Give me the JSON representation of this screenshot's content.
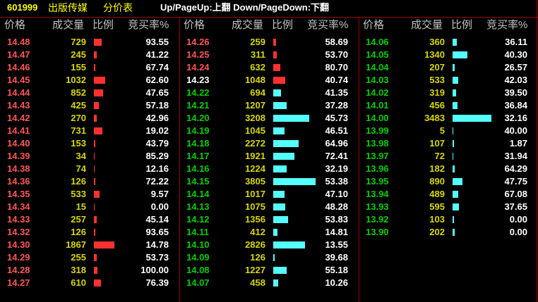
{
  "header": {
    "code": "601999",
    "name": "出版传媒",
    "title": "分价表",
    "hint": "Up/PageUp:上翻 Down/PageDown:下翻"
  },
  "columns_header": [
    "价格",
    "成交量",
    "比例",
    "竞买率%"
  ],
  "panels": [
    {
      "rows": [
        {
          "price": "14.48",
          "volume": 729,
          "rate": "93.55",
          "color": "#ff5454",
          "bar_color": "#ff3030"
        },
        {
          "price": "14.47",
          "volume": 245,
          "rate": "41.22",
          "color": "#ff5454",
          "bar_color": "#ff3030"
        },
        {
          "price": "14.46",
          "volume": 155,
          "rate": "67.74",
          "color": "#ff5454",
          "bar_color": "#ff3030"
        },
        {
          "price": "14.45",
          "volume": 1032,
          "rate": "62.60",
          "color": "#ff5454",
          "bar_color": "#ff3030"
        },
        {
          "price": "14.44",
          "volume": 852,
          "rate": "47.65",
          "color": "#ff5454",
          "bar_color": "#ff3030"
        },
        {
          "price": "14.43",
          "volume": 425,
          "rate": "57.18",
          "color": "#ff5454",
          "bar_color": "#ff3030"
        },
        {
          "price": "14.42",
          "volume": 270,
          "rate": "42.96",
          "color": "#ff5454",
          "bar_color": "#ff3030"
        },
        {
          "price": "14.41",
          "volume": 731,
          "rate": "19.02",
          "color": "#ff5454",
          "bar_color": "#ff3030"
        },
        {
          "price": "14.40",
          "volume": 153,
          "rate": "43.79",
          "color": "#ff5454",
          "bar_color": "#ff3030"
        },
        {
          "price": "14.39",
          "volume": 34,
          "rate": "85.29",
          "color": "#ff5454",
          "bar_color": "#ff3030"
        },
        {
          "price": "14.38",
          "volume": 74,
          "rate": "12.16",
          "color": "#ff5454",
          "bar_color": "#ff3030"
        },
        {
          "price": "14.36",
          "volume": 126,
          "rate": "72.22",
          "color": "#ff5454",
          "bar_color": "#ff3030"
        },
        {
          "price": "14.35",
          "volume": 533,
          "rate": "9.57",
          "color": "#ff5454",
          "bar_color": "#ff3030"
        },
        {
          "price": "14.34",
          "volume": 15,
          "rate": "0.00",
          "color": "#ff5454",
          "bar_color": "#ff3030"
        },
        {
          "price": "14.33",
          "volume": 257,
          "rate": "45.14",
          "color": "#ff5454",
          "bar_color": "#ff3030"
        },
        {
          "price": "14.32",
          "volume": 126,
          "rate": "93.65",
          "color": "#ff5454",
          "bar_color": "#ff3030"
        },
        {
          "price": "14.30",
          "volume": 1867,
          "rate": "14.78",
          "color": "#ff5454",
          "bar_color": "#ff3030"
        },
        {
          "price": "14.29",
          "volume": 255,
          "rate": "53.73",
          "color": "#ff5454",
          "bar_color": "#ff3030"
        },
        {
          "price": "14.28",
          "volume": 318,
          "rate": "100.00",
          "color": "#ff5454",
          "bar_color": "#ff3030"
        },
        {
          "price": "14.27",
          "volume": 610,
          "rate": "76.39",
          "color": "#ff5454",
          "bar_color": "#ff3030"
        }
      ]
    },
    {
      "rows": [
        {
          "price": "14.26",
          "volume": 259,
          "rate": "58.69",
          "color": "#ff5454",
          "bar_color": "#ff3030"
        },
        {
          "price": "14.25",
          "volume": 311,
          "rate": "53.70",
          "color": "#ff5454",
          "bar_color": "#ff3030"
        },
        {
          "price": "14.24",
          "volume": 632,
          "rate": "80.70",
          "color": "#ff5454",
          "bar_color": "#ff3030"
        },
        {
          "price": "14.23",
          "volume": 1048,
          "rate": "40.74",
          "color": "#ffffff",
          "bar_color": "#ff3030"
        },
        {
          "price": "14.22",
          "volume": 694,
          "rate": "41.35",
          "color": "#00d000",
          "bar_color": "#54ffff"
        },
        {
          "price": "14.21",
          "volume": 1207,
          "rate": "37.28",
          "color": "#00d000",
          "bar_color": "#54ffff"
        },
        {
          "price": "14.20",
          "volume": 3208,
          "rate": "45.73",
          "color": "#00d000",
          "bar_color": "#54ffff"
        },
        {
          "price": "14.19",
          "volume": 1045,
          "rate": "46.51",
          "color": "#00d000",
          "bar_color": "#54ffff"
        },
        {
          "price": "14.18",
          "volume": 2272,
          "rate": "64.96",
          "color": "#00d000",
          "bar_color": "#54ffff"
        },
        {
          "price": "14.17",
          "volume": 1921,
          "rate": "72.41",
          "color": "#00d000",
          "bar_color": "#54ffff"
        },
        {
          "price": "14.16",
          "volume": 1224,
          "rate": "32.19",
          "color": "#00d000",
          "bar_color": "#54ffff"
        },
        {
          "price": "14.15",
          "volume": 3805,
          "rate": "53.38",
          "color": "#00d000",
          "bar_color": "#54ffff"
        },
        {
          "price": "14.14",
          "volume": 1017,
          "rate": "47.10",
          "color": "#00d000",
          "bar_color": "#54ffff"
        },
        {
          "price": "14.13",
          "volume": 1075,
          "rate": "48.28",
          "color": "#00d000",
          "bar_color": "#54ffff"
        },
        {
          "price": "14.12",
          "volume": 1356,
          "rate": "53.83",
          "color": "#00d000",
          "bar_color": "#54ffff"
        },
        {
          "price": "14.11",
          "volume": 412,
          "rate": "14.81",
          "color": "#00d000",
          "bar_color": "#54ffff"
        },
        {
          "price": "14.10",
          "volume": 2826,
          "rate": "13.55",
          "color": "#00d000",
          "bar_color": "#54ffff"
        },
        {
          "price": "14.09",
          "volume": 126,
          "rate": "39.68",
          "color": "#00d000",
          "bar_color": "#54ffff"
        },
        {
          "price": "14.08",
          "volume": 1227,
          "rate": "55.18",
          "color": "#00d000",
          "bar_color": "#54ffff"
        },
        {
          "price": "14.07",
          "volume": 458,
          "rate": "10.26",
          "color": "#00d000",
          "bar_color": "#54ffff"
        }
      ]
    },
    {
      "rows": [
        {
          "price": "14.06",
          "volume": 360,
          "rate": "36.11",
          "color": "#00d000",
          "bar_color": "#54ffff"
        },
        {
          "price": "14.05",
          "volume": 1340,
          "rate": "40.30",
          "color": "#00d000",
          "bar_color": "#54ffff"
        },
        {
          "price": "14.04",
          "volume": 207,
          "rate": "26.57",
          "color": "#00d000",
          "bar_color": "#54ffff"
        },
        {
          "price": "14.03",
          "volume": 533,
          "rate": "42.03",
          "color": "#00d000",
          "bar_color": "#54ffff"
        },
        {
          "price": "14.02",
          "volume": 319,
          "rate": "39.50",
          "color": "#00d000",
          "bar_color": "#54ffff"
        },
        {
          "price": "14.01",
          "volume": 456,
          "rate": "36.84",
          "color": "#00d000",
          "bar_color": "#54ffff"
        },
        {
          "price": "14.00",
          "volume": 3483,
          "rate": "32.16",
          "color": "#00d000",
          "bar_color": "#54ffff"
        },
        {
          "price": "13.99",
          "volume": 5,
          "rate": "40.00",
          "color": "#00d000",
          "bar_color": "#54ffff"
        },
        {
          "price": "13.98",
          "volume": 107,
          "rate": "1.87",
          "color": "#00d000",
          "bar_color": "#54ffff"
        },
        {
          "price": "13.97",
          "volume": 72,
          "rate": "31.94",
          "color": "#00d000",
          "bar_color": "#54ffff"
        },
        {
          "price": "13.96",
          "volume": 182,
          "rate": "64.29",
          "color": "#00d000",
          "bar_color": "#54ffff"
        },
        {
          "price": "13.95",
          "volume": 890,
          "rate": "47.75",
          "color": "#00d000",
          "bar_color": "#54ffff"
        },
        {
          "price": "13.94",
          "volume": 489,
          "rate": "67.08",
          "color": "#00d000",
          "bar_color": "#54ffff"
        },
        {
          "price": "13.93",
          "volume": 595,
          "rate": "37.65",
          "color": "#00d000",
          "bar_color": "#54ffff"
        },
        {
          "price": "13.92",
          "volume": 103,
          "rate": "0.00",
          "color": "#00d000",
          "bar_color": "#54ffff"
        },
        {
          "price": "13.90",
          "volume": 202,
          "rate": "0.00",
          "color": "#00d000",
          "bar_color": "#54ffff"
        }
      ]
    }
  ]
}
